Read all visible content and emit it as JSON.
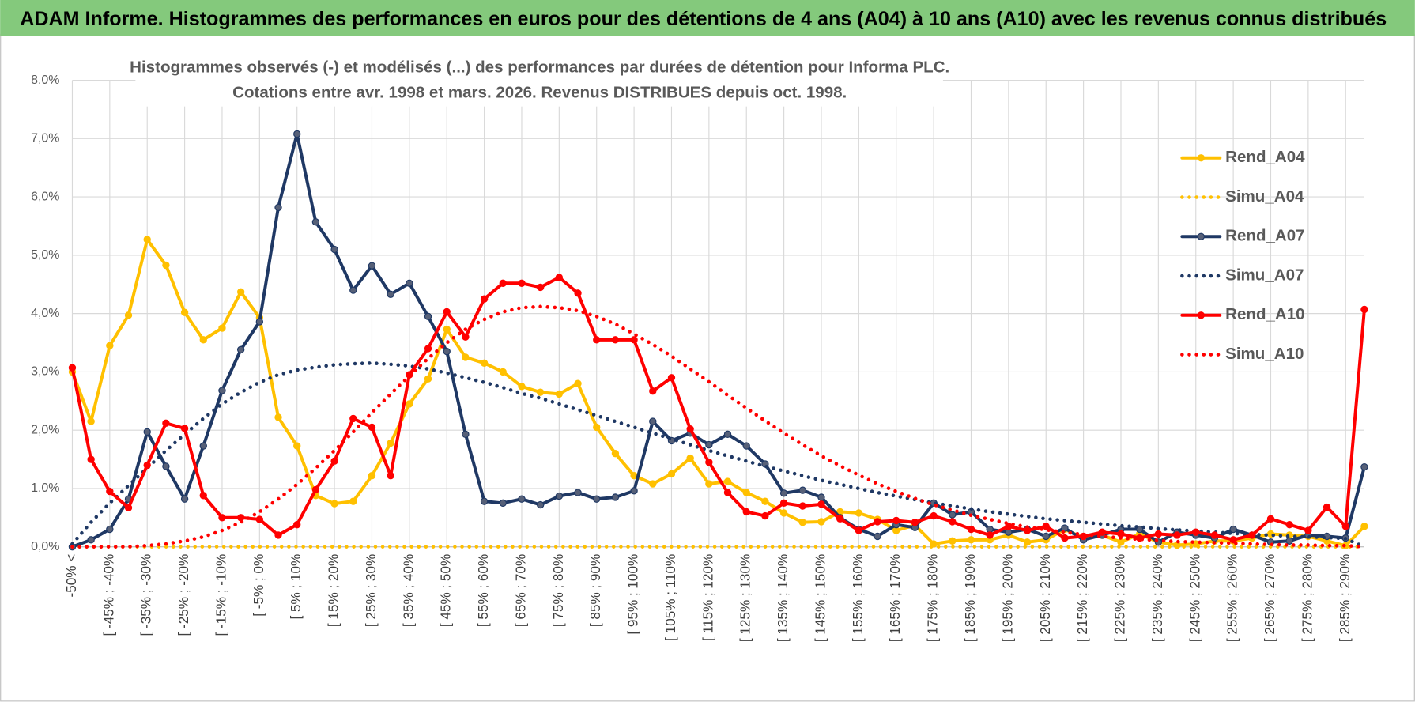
{
  "header": {
    "title": "ADAM Informe. Histogrammes des performances en euros pour des détentions de 4 ans (A04) à 10 ans (A10) avec les revenus connus distribués"
  },
  "chart_data": {
    "type": "line",
    "title_lines": [
      "Histogrammes observés (-) et modélisés (...) des performances par durées de détention pour Informa PLC.",
      "Cotations entre avr. 1998 et mars. 2026. Revenus DISTRIBUES depuis oct. 1998."
    ],
    "categories": [
      "-50% <",
      null,
      "[ -45% ; -40%",
      null,
      "[ -35% ; -30%",
      null,
      "[ -25% ; -20%",
      null,
      "[ -15% ; -10%",
      null,
      "[ -5% ; 0%",
      null,
      "[ 5% ; 10%",
      null,
      "[ 15% ; 20%",
      null,
      "[ 25% ; 30%",
      null,
      "[ 35% ; 40%",
      null,
      "[ 45% ; 50%",
      null,
      "[ 55% ; 60%",
      null,
      "[ 65% ; 70%",
      null,
      "[ 75% ; 80%",
      null,
      "[ 85% ; 90%",
      null,
      "[ 95% ; 100%",
      null,
      "[ 105% ; 110%",
      null,
      "[ 115% ; 120%",
      null,
      "[ 125% ; 130%",
      null,
      "[ 135% ; 140%",
      null,
      "[ 145% ; 150%",
      null,
      "[ 155% ; 160%",
      null,
      "[ 165% ; 170%",
      null,
      "[ 175% ; 180%",
      null,
      "[ 185% ; 190%",
      null,
      "[ 195% ; 200%",
      null,
      "[ 205% ; 210%",
      null,
      "[ 215% ; 220%",
      null,
      "[ 225% ; 230%",
      null,
      "[ 235% ; 240%",
      null,
      "[ 245% ; 250%",
      null,
      "[ 255% ; 260%",
      null,
      "[ 265% ; 270%",
      null,
      "[ 275% ; 280%",
      null,
      "[ 285% ; 290%",
      null
    ],
    "series": [
      {
        "name": "Rend_A04",
        "color": "#ffc000",
        "style": "solid",
        "markers": true,
        "values": [
          3.0,
          2.15,
          3.45,
          3.97,
          5.27,
          4.83,
          4.02,
          3.55,
          3.75,
          4.37,
          3.93,
          2.22,
          1.73,
          0.88,
          0.74,
          0.78,
          1.22,
          1.78,
          2.45,
          2.88,
          3.73,
          3.25,
          3.15,
          3.0,
          2.75,
          2.65,
          2.62,
          2.8,
          2.05,
          1.6,
          1.22,
          1.08,
          1.25,
          1.52,
          1.08,
          1.12,
          0.93,
          0.78,
          0.58,
          0.42,
          0.43,
          0.6,
          0.58,
          0.47,
          0.28,
          0.37,
          0.05,
          0.1,
          0.12,
          0.12,
          0.2,
          0.08,
          0.12,
          0.3,
          0.15,
          0.2,
          0.08,
          0.22,
          0.08,
          0.03,
          0.05,
          0.1,
          0.1,
          0.15,
          0.22,
          0.2,
          0.18,
          0.1,
          0.02,
          0.35
        ]
      },
      {
        "name": "Simu_A04",
        "color": "#ffc000",
        "style": "dotted",
        "markers": false,
        "values": [
          0,
          0,
          0,
          0,
          0,
          0,
          0,
          0,
          0,
          0,
          0,
          0,
          0,
          0,
          0,
          0,
          0,
          0,
          0,
          0,
          0,
          0,
          0,
          0,
          0,
          0,
          0,
          0,
          0,
          0,
          0,
          0,
          0,
          0,
          0,
          0,
          0,
          0,
          0,
          0,
          0,
          0,
          0,
          0,
          0,
          0,
          0,
          0,
          0,
          0,
          0,
          0,
          0,
          0,
          0,
          0,
          0,
          0,
          0,
          0,
          0,
          0,
          0,
          0,
          0,
          0,
          0,
          0,
          0,
          0
        ]
      },
      {
        "name": "Rend_A07",
        "color": "#1f3864",
        "style": "solid",
        "markers": true,
        "values": [
          0,
          0.12,
          0.3,
          0.82,
          1.97,
          1.38,
          0.82,
          1.73,
          2.68,
          3.38,
          3.86,
          5.82,
          7.08,
          5.57,
          5.1,
          4.4,
          4.82,
          4.33,
          4.52,
          3.95,
          3.35,
          1.93,
          0.78,
          0.75,
          0.82,
          0.72,
          0.87,
          0.93,
          0.82,
          0.85,
          0.96,
          2.15,
          1.82,
          1.95,
          1.75,
          1.93,
          1.73,
          1.42,
          0.92,
          0.97,
          0.85,
          0.5,
          0.3,
          0.18,
          0.38,
          0.33,
          0.75,
          0.55,
          0.6,
          0.3,
          0.25,
          0.3,
          0.18,
          0.32,
          0.12,
          0.2,
          0.3,
          0.3,
          0.08,
          0.25,
          0.2,
          0.15,
          0.3,
          0.2,
          0.08,
          0.1,
          0.2,
          0.18,
          0.15,
          1.37
        ]
      },
      {
        "name": "Simu_A07",
        "color": "#1f3864",
        "style": "dotted",
        "markers": false,
        "values": [
          0.05,
          0.42,
          0.75,
          1.05,
          1.35,
          1.65,
          1.93,
          2.2,
          2.45,
          2.65,
          2.82,
          2.95,
          3.03,
          3.08,
          3.12,
          3.14,
          3.15,
          3.13,
          3.1,
          3.05,
          2.98,
          2.9,
          2.82,
          2.73,
          2.63,
          2.55,
          2.45,
          2.35,
          2.25,
          2.15,
          2.05,
          1.95,
          1.85,
          1.75,
          1.65,
          1.56,
          1.47,
          1.38,
          1.3,
          1.22,
          1.14,
          1.07,
          1.0,
          0.93,
          0.87,
          0.81,
          0.75,
          0.7,
          0.65,
          0.6,
          0.56,
          0.52,
          0.48,
          0.45,
          0.42,
          0.39,
          0.36,
          0.34,
          0.31,
          0.29,
          0.27,
          0.25,
          0.23,
          0.21,
          0.2,
          0.18,
          0.17,
          0.16,
          0.14,
          0
        ]
      },
      {
        "name": "Rend_A10",
        "color": "#ff0000",
        "style": "solid",
        "markers": true,
        "values": [
          3.07,
          1.5,
          0.95,
          0.67,
          1.4,
          2.12,
          2.03,
          0.88,
          0.5,
          0.5,
          0.47,
          0.2,
          0.38,
          0.98,
          1.47,
          2.2,
          2.05,
          1.22,
          2.95,
          3.4,
          4.03,
          3.6,
          4.25,
          4.52,
          4.52,
          4.45,
          4.62,
          4.35,
          3.55,
          3.55,
          3.55,
          2.67,
          2.9,
          2.02,
          1.45,
          0.93,
          0.6,
          0.53,
          0.75,
          0.7,
          0.73,
          0.48,
          0.28,
          0.43,
          0.45,
          0.42,
          0.53,
          0.43,
          0.3,
          0.2,
          0.35,
          0.28,
          0.35,
          0.15,
          0.18,
          0.25,
          0.22,
          0.15,
          0.22,
          0.2,
          0.25,
          0.2,
          0.12,
          0.2,
          0.48,
          0.38,
          0.28,
          0.68,
          0.35,
          4.07
        ]
      },
      {
        "name": "Simu_A10",
        "color": "#ff0000",
        "style": "dotted",
        "markers": false,
        "values": [
          0,
          0,
          0,
          0,
          0.02,
          0.05,
          0.1,
          0.17,
          0.28,
          0.42,
          0.6,
          0.82,
          1.07,
          1.35,
          1.65,
          1.97,
          2.3,
          2.62,
          2.93,
          3.23,
          3.5,
          3.73,
          3.9,
          4.03,
          4.1,
          4.12,
          4.1,
          4.05,
          3.95,
          3.82,
          3.65,
          3.47,
          3.27,
          3.05,
          2.83,
          2.6,
          2.38,
          2.16,
          1.95,
          1.75,
          1.56,
          1.39,
          1.23,
          1.08,
          0.95,
          0.83,
          0.72,
          0.63,
          0.54,
          0.47,
          0.4,
          0.34,
          0.29,
          0.25,
          0.21,
          0.18,
          0.15,
          0.13,
          0.11,
          0.09,
          0.08,
          0.07,
          0.06,
          0.05,
          0.04,
          0.03,
          0.03,
          0.02,
          0.02,
          0
        ]
      }
    ],
    "ylim": [
      0,
      8
    ],
    "yticks": [
      {
        "value": 0,
        "label": "0,0%"
      },
      {
        "value": 1,
        "label": "1,0%"
      },
      {
        "value": 2,
        "label": "2,0%"
      },
      {
        "value": 3,
        "label": "3,0%"
      },
      {
        "value": 4,
        "label": "4,0%"
      },
      {
        "value": 5,
        "label": "5,0%"
      },
      {
        "value": 6,
        "label": "6,0%"
      },
      {
        "value": 7,
        "label": "7,0%"
      },
      {
        "value": 8,
        "label": "8,0%"
      }
    ],
    "grid": true,
    "legend": "right"
  }
}
